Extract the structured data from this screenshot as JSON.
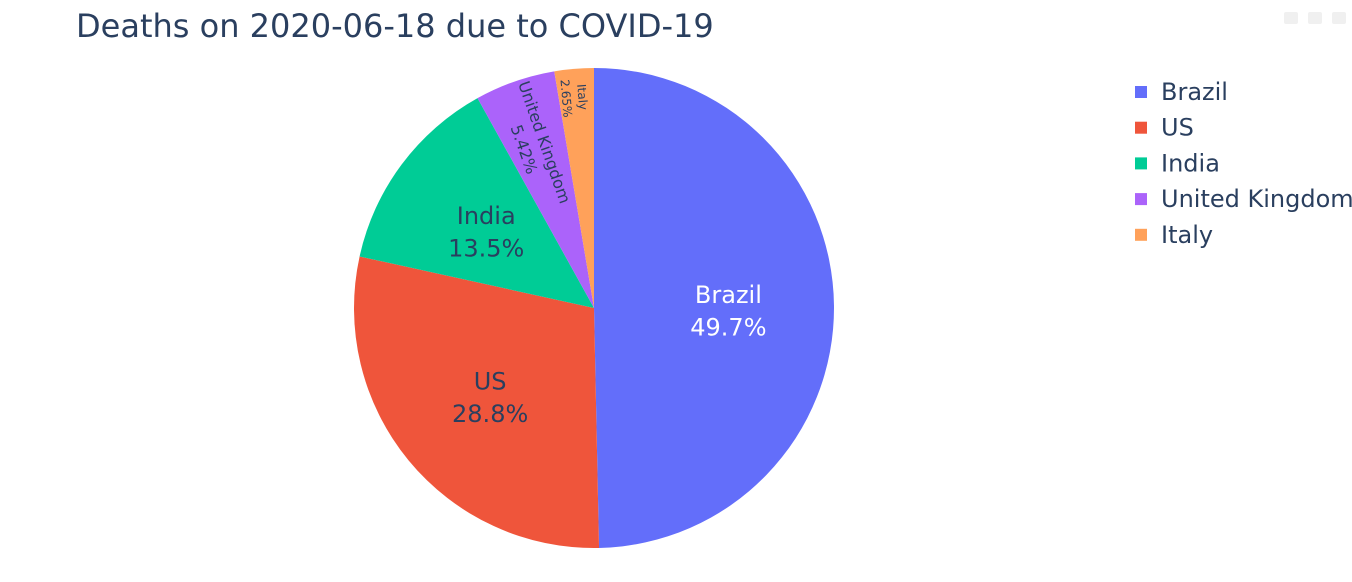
{
  "chart_data": {
    "type": "pie",
    "title": "Deaths on 2020-06-18 due to COVID-19",
    "labels": [
      "Brazil",
      "US",
      "India",
      "United Kingdom",
      "Italy"
    ],
    "percentages": [
      49.7,
      28.8,
      13.5,
      5.42,
      2.65
    ],
    "percent_labels": [
      "49.7%",
      "28.8%",
      "13.5%",
      "5.42%",
      "2.65%"
    ],
    "colors": [
      "#636efa",
      "#ef553b",
      "#00cc96",
      "#ab63fa",
      "#ffa15a"
    ],
    "legend": [
      "Brazil",
      "US",
      "India",
      "United Kingdom",
      "Italy"
    ],
    "legend_position": "top-right"
  }
}
